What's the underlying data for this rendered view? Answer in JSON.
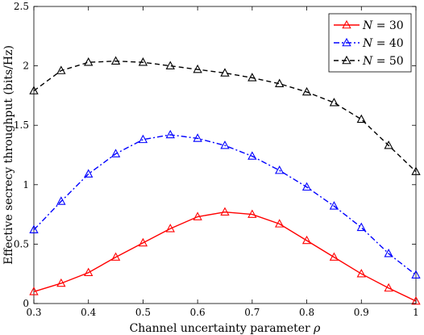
{
  "chart_data": {
    "type": "line",
    "xlabel_text": "Channel uncertainty parameter",
    "xlabel_symbol": "ρ",
    "ylabel": "Effective secrecy throughput (bits/Hz)",
    "xlim": [
      0.3,
      1.0
    ],
    "ylim": [
      0,
      2.5
    ],
    "x_ticks": [
      "0.3",
      "0.4",
      "0.5",
      "0.6",
      "0.7",
      "0.8",
      "0.9",
      "1"
    ],
    "y_ticks": [
      "0",
      "0.5",
      "1",
      "1.5",
      "2",
      "2.5"
    ],
    "grid": false,
    "legend_position": "top-right",
    "x": [
      0.3,
      0.35,
      0.4,
      0.45,
      0.5,
      0.55,
      0.6,
      0.65,
      0.7,
      0.75,
      0.8,
      0.85,
      0.9,
      0.95,
      1.0
    ],
    "series": [
      {
        "legend_var": "N",
        "legend_rest": " = 30",
        "color": "#ff0000",
        "dash": "solid",
        "marker": "triangle",
        "values": [
          0.1,
          0.17,
          0.26,
          0.39,
          0.51,
          0.63,
          0.73,
          0.77,
          0.75,
          0.67,
          0.53,
          0.39,
          0.25,
          0.13,
          0.02
        ]
      },
      {
        "legend_var": "N",
        "legend_rest": " = 40",
        "color": "#0000ff",
        "dash": "dashdot",
        "marker": "triangle",
        "values": [
          0.62,
          0.86,
          1.09,
          1.26,
          1.38,
          1.42,
          1.39,
          1.33,
          1.24,
          1.12,
          0.98,
          0.82,
          0.64,
          0.42,
          0.24
        ]
      },
      {
        "legend_var": "N",
        "legend_rest": " = 50",
        "color": "#000000",
        "dash": "dashed",
        "marker": "triangle",
        "values": [
          1.79,
          1.96,
          2.03,
          2.04,
          2.03,
          2.0,
          1.97,
          1.94,
          1.9,
          1.85,
          1.78,
          1.69,
          1.55,
          1.33,
          1.11
        ]
      }
    ]
  }
}
